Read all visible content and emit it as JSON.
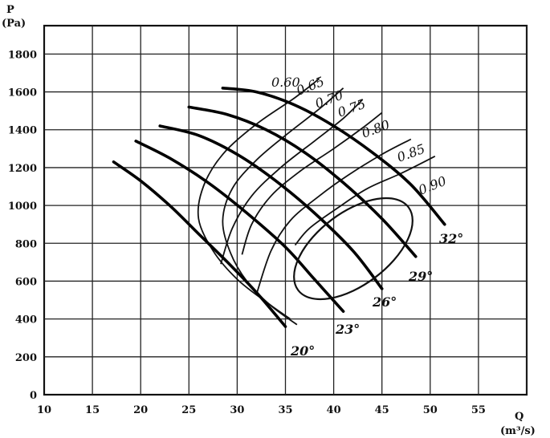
{
  "chart_data": {
    "type": "line",
    "y_axis": {
      "symbol": "P",
      "unit": "(Pa)",
      "ticks": [
        0,
        200,
        400,
        600,
        800,
        1000,
        1200,
        1400,
        1600,
        1800
      ],
      "range": [
        0,
        1950
      ]
    },
    "x_axis": {
      "symbol": "Q",
      "unit": "(m³/s)",
      "ticks": [
        10,
        15,
        20,
        25,
        30,
        35,
        40,
        45,
        50,
        55
      ],
      "range": [
        10,
        60
      ]
    },
    "grid": true,
    "series": [
      {
        "name": "20°",
        "points": [
          [
            17.2,
            1230
          ],
          [
            20,
            1130
          ],
          [
            23,
            1000
          ],
          [
            26,
            850
          ],
          [
            29,
            700
          ],
          [
            32,
            540
          ],
          [
            35,
            360
          ]
        ]
      },
      {
        "name": "23°",
        "points": [
          [
            19.5,
            1340
          ],
          [
            23,
            1250
          ],
          [
            27,
            1120
          ],
          [
            31,
            960
          ],
          [
            35,
            780
          ],
          [
            38,
            610
          ],
          [
            41,
            440
          ]
        ]
      },
      {
        "name": "26°",
        "points": [
          [
            22,
            1420
          ],
          [
            26,
            1370
          ],
          [
            30,
            1270
          ],
          [
            34,
            1130
          ],
          [
            38,
            960
          ],
          [
            42,
            760
          ],
          [
            45,
            560
          ]
        ]
      },
      {
        "name": "29°",
        "points": [
          [
            25,
            1520
          ],
          [
            29,
            1480
          ],
          [
            33,
            1400
          ],
          [
            37,
            1280
          ],
          [
            41,
            1120
          ],
          [
            45,
            930
          ],
          [
            48.5,
            730
          ]
        ]
      },
      {
        "name": "32°",
        "points": [
          [
            28.5,
            1620
          ],
          [
            32,
            1600
          ],
          [
            36,
            1530
          ],
          [
            40,
            1420
          ],
          [
            44,
            1280
          ],
          [
            48,
            1110
          ],
          [
            51.5,
            900
          ]
        ]
      }
    ],
    "efficiency_curves": [
      {
        "label": "0.60",
        "points": [
          [
            35.5,
            400
          ],
          [
            33,
            490
          ],
          [
            30,
            610
          ],
          [
            27.5,
            760
          ],
          [
            26,
            930
          ],
          [
            26.5,
            1100
          ],
          [
            28.5,
            1270
          ],
          [
            32,
            1430
          ],
          [
            36,
            1570
          ],
          [
            38.5,
            1670
          ]
        ]
      },
      {
        "label": "0.65",
        "points": [
          [
            36.2,
            370
          ],
          [
            33.5,
            470
          ],
          [
            31,
            600
          ],
          [
            29.3,
            750
          ],
          [
            28.5,
            920
          ],
          [
            29.5,
            1090
          ],
          [
            32,
            1240
          ],
          [
            35,
            1370
          ],
          [
            38.5,
            1510
          ],
          [
            41,
            1620
          ]
        ]
      },
      {
        "name_note": "",
        "label": "0.70",
        "points": [
          [
            28.3,
            690
          ],
          [
            29.5,
            880
          ],
          [
            31.5,
            1050
          ],
          [
            34.5,
            1200
          ],
          [
            38,
            1340
          ],
          [
            41,
            1460
          ],
          [
            43,
            1560
          ]
        ]
      },
      {
        "label": "0.75",
        "points": [
          [
            30.5,
            740
          ],
          [
            31.5,
            900
          ],
          [
            33.5,
            1050
          ],
          [
            36.5,
            1180
          ],
          [
            40,
            1300
          ],
          [
            43,
            1410
          ],
          [
            45,
            1490
          ]
        ]
      },
      {
        "label": "0.80",
        "points": [
          [
            32,
            530
          ],
          [
            33.5,
            760
          ],
          [
            35.5,
            920
          ],
          [
            38.5,
            1050
          ],
          [
            41.5,
            1160
          ],
          [
            45,
            1270
          ],
          [
            48,
            1350
          ]
        ]
      },
      {
        "label": "0.85",
        "points": [
          [
            36,
            790
          ],
          [
            37.5,
            880
          ],
          [
            40.5,
            990
          ],
          [
            43.5,
            1090
          ],
          [
            47,
            1170
          ],
          [
            50.5,
            1260
          ]
        ]
      }
    ],
    "efficiency_labels": [
      "0.60",
      "0.65",
      "0.70",
      "0.75",
      "0.80",
      "0.85",
      "0.90"
    ],
    "inner_ellipse": {
      "label": "0.90",
      "center": [
        44.5,
        840
      ],
      "note": "closed contour"
    }
  }
}
